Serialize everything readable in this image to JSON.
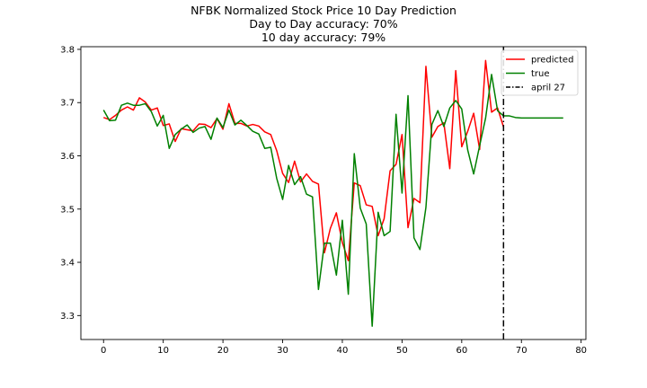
{
  "chart_data": {
    "type": "line",
    "title": "NFBK Normalized Stock Price 10 Day Prediction",
    "subtitle_lines": [
      "Day to Day accuracy: 70%",
      "10 day accuracy: 79%"
    ],
    "xlabel": "",
    "ylabel": "",
    "xlim": [
      -3.8,
      80.8
    ],
    "ylim": [
      3.255,
      3.805
    ],
    "xticks": [
      0,
      10,
      20,
      30,
      40,
      50,
      60,
      70,
      80
    ],
    "yticks": [
      3.3,
      3.4,
      3.5,
      3.6,
      3.7,
      3.8
    ],
    "ytick_labels": [
      "3.3",
      "3.4",
      "3.5",
      "3.6",
      "3.7",
      "3.8"
    ],
    "grid": false,
    "legend_position": "top-right",
    "series": [
      {
        "name": "predicted",
        "color": "#ff0000",
        "x_start": 0,
        "values": [
          3.672,
          3.668,
          3.676,
          3.686,
          3.692,
          3.686,
          3.709,
          3.701,
          3.686,
          3.69,
          3.657,
          3.66,
          3.627,
          3.651,
          3.649,
          3.647,
          3.66,
          3.659,
          3.653,
          3.67,
          3.65,
          3.698,
          3.661,
          3.661,
          3.656,
          3.659,
          3.656,
          3.645,
          3.64,
          3.61,
          3.567,
          3.55,
          3.59,
          3.551,
          3.566,
          3.552,
          3.547,
          3.418,
          3.464,
          3.493,
          3.437,
          3.403,
          3.549,
          3.544,
          3.508,
          3.505,
          3.45,
          3.482,
          3.572,
          3.584,
          3.64,
          3.465,
          3.52,
          3.512,
          3.768,
          3.635,
          3.655,
          3.662,
          3.576,
          3.76,
          3.617,
          3.646,
          3.68,
          3.612,
          3.779,
          3.682,
          3.69,
          3.654
        ]
      },
      {
        "name": "true",
        "color": "#008000",
        "x_start": 0,
        "values": [
          3.686,
          3.666,
          3.667,
          3.695,
          3.699,
          3.695,
          3.695,
          3.698,
          3.683,
          3.656,
          3.676,
          3.614,
          3.64,
          3.65,
          3.658,
          3.644,
          3.652,
          3.655,
          3.631,
          3.671,
          3.653,
          3.686,
          3.658,
          3.667,
          3.657,
          3.646,
          3.641,
          3.614,
          3.616,
          3.558,
          3.518,
          3.582,
          3.546,
          3.561,
          3.528,
          3.523,
          3.349,
          3.436,
          3.436,
          3.376,
          3.479,
          3.34,
          3.604,
          3.502,
          3.472,
          3.28,
          3.494,
          3.45,
          3.458,
          3.678,
          3.53,
          3.713,
          3.446,
          3.424,
          3.503,
          3.659,
          3.685,
          3.655,
          3.69,
          3.704,
          3.688,
          3.611,
          3.566,
          3.619,
          3.671,
          3.753,
          3.685,
          3.675,
          3.675,
          3.672,
          3.671,
          3.671,
          3.671,
          3.671,
          3.671,
          3.671,
          3.671,
          3.671
        ]
      }
    ],
    "vertical_line": {
      "name": "april 27",
      "x": 67,
      "color": "#000000",
      "style": "dash-dot"
    }
  }
}
